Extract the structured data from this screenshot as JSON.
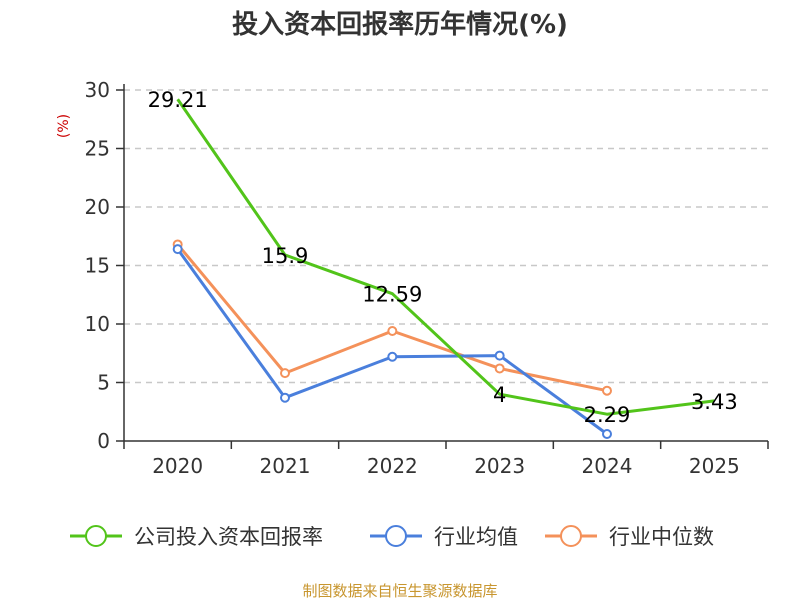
{
  "chart_data": {
    "type": "line",
    "title": "投入资本回报率历年情况(%)",
    "ylabel": "(%)",
    "xlabel": "",
    "ylim": [
      0,
      30
    ],
    "yticks": [
      0,
      5,
      10,
      15,
      20,
      25,
      30
    ],
    "categories": [
      "2020",
      "2021",
      "2022",
      "2023",
      "2024",
      "2025"
    ],
    "grid": true,
    "legend_position": "bottom",
    "series": [
      {
        "name": "公司投入资本回报率",
        "color": "#52c41a",
        "values": [
          29.21,
          15.9,
          12.59,
          4,
          2.29,
          3.43
        ],
        "labels": [
          "29.21",
          "15.9",
          "12.59",
          "4",
          "2.29",
          "3.43"
        ]
      },
      {
        "name": "行业均值",
        "color": "#4a7fdc",
        "values": [
          16.4,
          3.7,
          7.2,
          7.3,
          0.6,
          null
        ]
      },
      {
        "name": "行业中位数",
        "color": "#f4915a",
        "values": [
          16.8,
          5.8,
          9.4,
          6.2,
          4.3,
          null
        ]
      }
    ],
    "source": "制图数据来自恒生聚源数据库"
  }
}
